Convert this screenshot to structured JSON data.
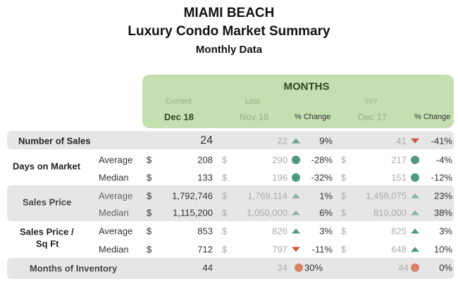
{
  "title": "MIAMI BEACH",
  "subtitle": "Luxury Condo Market Summary",
  "subtitle2": "Monthly Data",
  "header": {
    "months": "MONTHS",
    "current": "Current",
    "last": "Last",
    "yoy": "YoY",
    "cur_month": "Dec 18",
    "last_month": "Nov 18",
    "pct1": "% Change",
    "yoy_month": "Dec 17",
    "pct2": "% Change"
  },
  "rows": [
    {
      "label": "Number of Sales",
      "sub": "",
      "cur_d": "",
      "cur": "24",
      "last_d": "",
      "last": "22",
      "icon1": "triangle-up",
      "c1": "#6a9f8c",
      "pct1": "9%",
      "yoy_d": "",
      "yoy": "41",
      "icon2": "triangle-down",
      "c2": "#d0573c",
      "pct2": "-41%"
    },
    {
      "label": "Days on Market",
      "sub": "Average",
      "cur_d": "$",
      "cur": "208",
      "last_d": "$",
      "last": "290",
      "icon1": "circle",
      "c1": "#4f9a7e",
      "pct1": "-28%",
      "yoy_d": "$",
      "yoy": "217",
      "icon2": "circle",
      "c2": "#4f9a7e",
      "pct2": "-4%"
    },
    {
      "label": "",
      "sub": "Median",
      "cur_d": "$",
      "cur": "133",
      "last_d": "$",
      "last": "196",
      "icon1": "circle",
      "c1": "#4f9a7e",
      "pct1": "-32%",
      "yoy_d": "$",
      "yoy": "151",
      "icon2": "circle",
      "c2": "#4f9a7e",
      "pct2": "-12%"
    },
    {
      "label": "Sales Price",
      "sub": "Average",
      "cur_d": "$",
      "cur": "1,792,746",
      "last_d": "$",
      "last": "1,769,114",
      "icon1": "triangle-up",
      "c1": "#8fb5a4",
      "pct1": "1%",
      "yoy_d": "$",
      "yoy": "1,458,075",
      "icon2": "triangle-up",
      "c2": "#8fb5a4",
      "pct2": "23%"
    },
    {
      "label": "",
      "sub": "Median",
      "cur_d": "$",
      "cur": "1,115,200",
      "last_d": "$",
      "last": "1,050,000",
      "icon1": "triangle-up",
      "c1": "#8fb5a4",
      "pct1": "6%",
      "yoy_d": "$",
      "yoy": "810,000",
      "icon2": "triangle-up",
      "c2": "#8fb5a4",
      "pct2": "38%"
    },
    {
      "label": "Sales Price /",
      "sub": "Average",
      "cur_d": "$",
      "cur": "853",
      "last_d": "$",
      "last": "826",
      "icon1": "triangle-up",
      "c1": "#4f9a7e",
      "pct1": "3%",
      "yoy_d": "$",
      "yoy": "825",
      "icon2": "triangle-up",
      "c2": "#4f9a7e",
      "pct2": "3%"
    },
    {
      "label": "Sq Ft",
      "sub": "Median",
      "cur_d": "$",
      "cur": "712",
      "last_d": "$",
      "last": "797",
      "icon1": "triangle-down",
      "c1": "#d0573c",
      "pct1": "-11%",
      "yoy_d": "$",
      "yoy": "648",
      "icon2": "triangle-up",
      "c2": "#4f9a7e",
      "pct2": "10%"
    },
    {
      "label": "Months of Inventory",
      "sub": "",
      "cur_d": "",
      "cur": "44",
      "last_d": "",
      "last": "34",
      "icon1": "circle",
      "c1": "#d9826a",
      "pct1": "30%",
      "yoy_d": "",
      "yoy": "44",
      "icon2": "circle",
      "c2": "#d9826a",
      "pct2": "0%"
    }
  ]
}
